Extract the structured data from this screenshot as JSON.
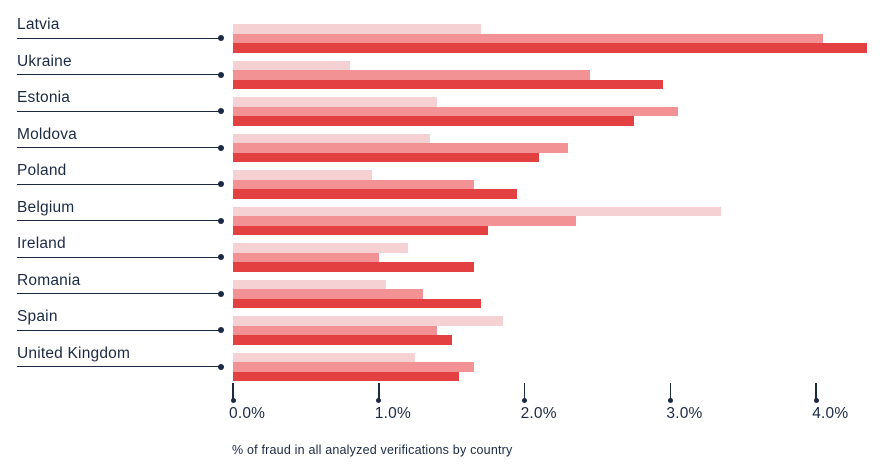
{
  "chart_data": {
    "type": "bar",
    "orientation": "horizontal",
    "title": "",
    "xlabel": "% of fraud in all analyzed verifications by country",
    "categories": [
      "Latvia",
      "Ukraine",
      "Estonia",
      "Moldova",
      "Poland",
      "Belgium",
      "Ireland",
      "Romania",
      "Spain",
      "United Kingdom"
    ],
    "series": [
      {
        "name": "series-light-pink",
        "color": "#f6d1d4",
        "values": [
          1.7,
          0.8,
          1.4,
          1.35,
          0.95,
          3.35,
          1.2,
          1.05,
          1.85,
          1.25
        ]
      },
      {
        "name": "series-salmon",
        "color": "#f29294",
        "values": [
          4.05,
          2.45,
          3.05,
          2.3,
          1.65,
          2.35,
          1.0,
          1.3,
          1.4,
          1.65
        ]
      },
      {
        "name": "series-red",
        "color": "#e34042",
        "values": [
          4.35,
          2.95,
          2.75,
          2.1,
          1.95,
          1.75,
          1.65,
          1.7,
          1.5,
          1.55
        ]
      }
    ],
    "x_ticks": [
      "0.0%",
      "1.0%",
      "2.0%",
      "3.0%",
      "4.0%"
    ],
    "x_tick_values": [
      0,
      1,
      2,
      3,
      4
    ],
    "xlim": [
      0,
      4.45
    ],
    "legend": "none",
    "grid": false
  },
  "style": {
    "text_color": "#1b2943",
    "background": "#ffffff"
  }
}
